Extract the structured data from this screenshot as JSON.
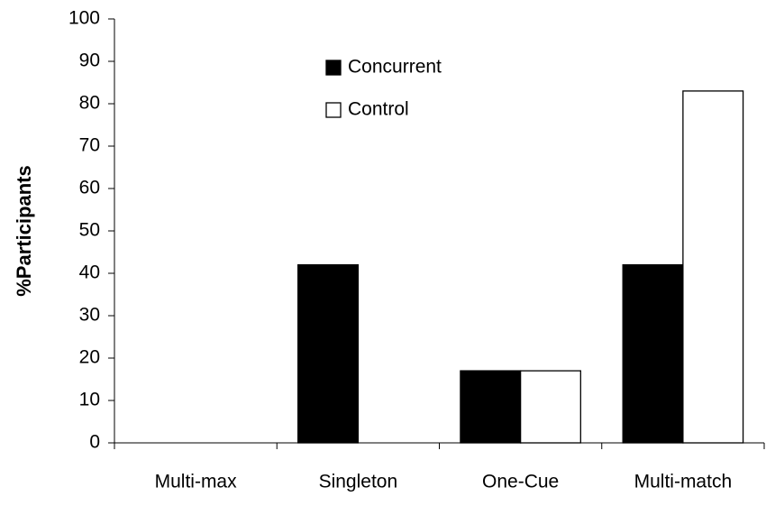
{
  "chart_data": {
    "type": "bar",
    "y_label": "%Participants",
    "categories": [
      "Multi-max",
      "Singleton",
      "One-Cue",
      "Multi-match"
    ],
    "series": [
      {
        "name": "Concurrent",
        "color": "#000000",
        "values": [
          0,
          42,
          17,
          42
        ]
      },
      {
        "name": "Control",
        "color": "#ffffff",
        "values": [
          0,
          0,
          17,
          83
        ]
      }
    ],
    "ylim": [
      0,
      100
    ],
    "yticks": [
      0,
      10,
      20,
      30,
      40,
      50,
      60,
      70,
      80,
      90,
      100
    ],
    "grid": false
  }
}
